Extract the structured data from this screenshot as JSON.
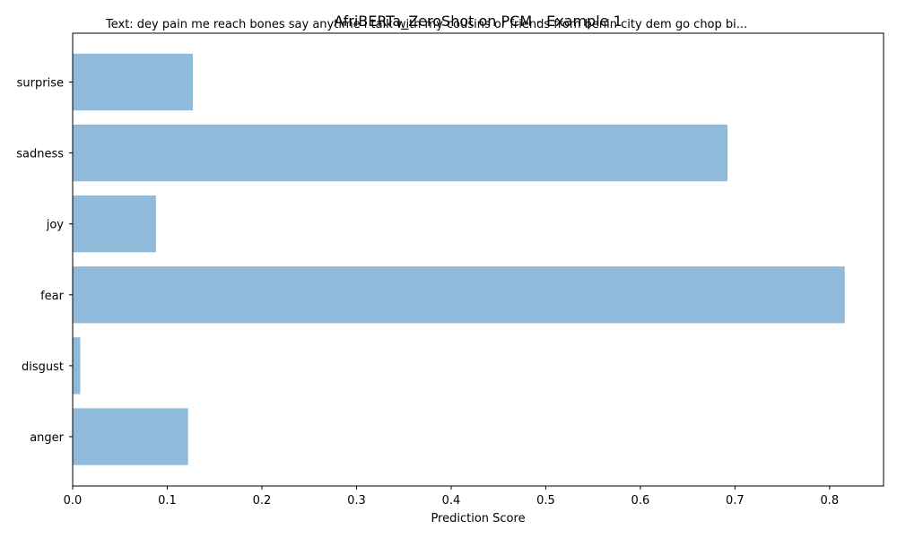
{
  "chart_data": {
    "type": "bar",
    "orientation": "horizontal",
    "title": "AfriBERTa_ZeroShot on PCM - Example 1",
    "annotation": "Text: dey pain me reach bones say anytime i talk with my cousins or friends from benin city dem go chop bi...",
    "xlabel": "Prediction Score",
    "ylabel": "",
    "categories": [
      "anger",
      "disgust",
      "fear",
      "joy",
      "sadness",
      "surprise"
    ],
    "values": [
      0.122,
      0.008,
      0.816,
      0.088,
      0.692,
      0.127
    ],
    "xlim": [
      0,
      0.857
    ],
    "xticks": [
      "0.0",
      "0.1",
      "0.2",
      "0.3",
      "0.4",
      "0.5",
      "0.6",
      "0.7",
      "0.8"
    ],
    "grid": false,
    "legend": "none",
    "colors": {
      "bar": "#8fbad9",
      "axes": "#000000",
      "background": "#ffffff"
    }
  }
}
